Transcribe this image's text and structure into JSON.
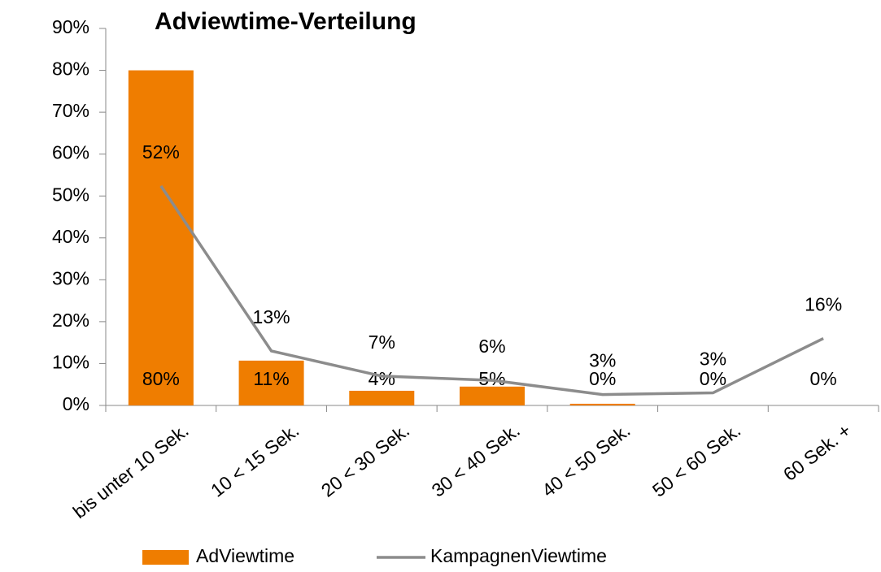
{
  "chart_data": {
    "type": "bar",
    "title": "Adviewtime-Verteilung",
    "categories": [
      "bis unter 10 Sek.",
      "10 < 15 Sek.",
      "20 < 30 Sek.",
      "30 < 40 Sek.",
      "40 < 50 Sek.",
      "50 < 60 Sek.",
      "60 Sek. +"
    ],
    "series": [
      {
        "name": "AdViewtime",
        "type": "bar",
        "color": "#ef7d00",
        "values": [
          80,
          10.7,
          3.5,
          4.5,
          0.4,
          0,
          0
        ],
        "value_labels": [
          "80%",
          "11%",
          "4%",
          "5%",
          "0%",
          "0%",
          "0%"
        ]
      },
      {
        "name": "KampagnenViewtime",
        "type": "line",
        "color": "#8c8c8c",
        "values": [
          52.4,
          13,
          7,
          6,
          2.6,
          3,
          16
        ],
        "value_labels": [
          "52%",
          "13%",
          "7%",
          "6%",
          "3%",
          "3%",
          "16%"
        ]
      }
    ],
    "ylim": [
      0,
      90
    ],
    "yticks": [
      {
        "value": 0,
        "label": "0%"
      },
      {
        "value": 10,
        "label": "10%"
      },
      {
        "value": 20,
        "label": "20%"
      },
      {
        "value": 30,
        "label": "30%"
      },
      {
        "value": 40,
        "label": "40%"
      },
      {
        "value": 50,
        "label": "50%"
      },
      {
        "value": 60,
        "label": "60%"
      },
      {
        "value": 70,
        "label": "70%"
      },
      {
        "value": 80,
        "label": "80%"
      },
      {
        "value": 90,
        "label": "90%"
      }
    ],
    "grid": false,
    "legend": "bottom"
  }
}
